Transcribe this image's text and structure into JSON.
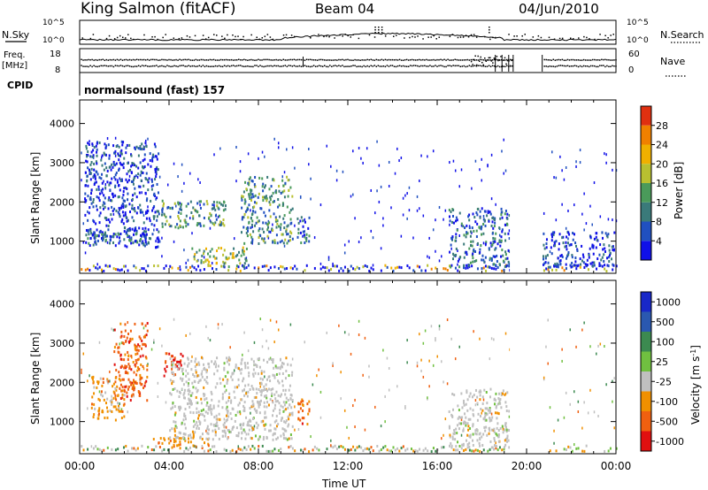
{
  "header": {
    "radar": "King Salmon (fitACF)",
    "beam": "Beam 04",
    "date": "04/Jun/2010"
  },
  "top_panels": {
    "nsky_label": "N.Sky",
    "nsearch_label": "N.Search",
    "freq_label_1": "Freq.",
    "freq_label_2": "[MHz]",
    "nave_label": "Nave",
    "cpid_label": "CPID",
    "cpid_value": "normalsound (fast) 157",
    "noise_ticks": [
      "10^5",
      "10^0"
    ],
    "freq_ticks": [
      "18",
      "8"
    ],
    "nave_ticks": [
      "60",
      "0"
    ]
  },
  "colors": {
    "power_scale": [
      "#1010e8",
      "#2050c0",
      "#3a7a7a",
      "#4a9a5a",
      "#b8c030",
      "#f0b000",
      "#f08000",
      "#e03010"
    ],
    "velocity_scale": [
      "#1828c8",
      "#2a58b0",
      "#3c8a50",
      "#70c040",
      "#c0c0c0",
      "#f09000",
      "#f06010",
      "#e01010"
    ],
    "ground_scatter": "#c0c0c0"
  },
  "chart_data": [
    {
      "type": "heatmap",
      "panel": "power",
      "ylabel": "Slant Range [km]",
      "y_ticks": [
        1000,
        2000,
        3000,
        4000
      ],
      "ylim": [
        180,
        4600
      ],
      "xlim": [
        0,
        24
      ],
      "colorbar": {
        "label": "Power [dB]",
        "tick_labels": [
          "4",
          "8",
          "12",
          "16",
          "20",
          "24",
          "28"
        ],
        "range": [
          0,
          32
        ]
      },
      "data_gaps_ut_hours": [
        [
          19.25,
          20.7
        ]
      ],
      "scatter_regions": [
        {
          "ut": [
            0.2,
            3.5
          ],
          "range_km": [
            800,
            3500
          ],
          "level_db": 6
        },
        {
          "ut": [
            0.2,
            3.0
          ],
          "range_km": [
            900,
            1300
          ],
          "level_db": 10
        },
        {
          "ut": [
            3.5,
            6.5
          ],
          "range_km": [
            1300,
            2000
          ],
          "level_db": 14
        },
        {
          "ut": [
            5.0,
            7.5
          ],
          "range_km": [
            300,
            800
          ],
          "level_db": 18
        },
        {
          "ut": [
            7.2,
            9.5
          ],
          "range_km": [
            900,
            2600
          ],
          "level_db": 12
        },
        {
          "ut": [
            9.7,
            10.3
          ],
          "range_km": [
            900,
            1600
          ],
          "level_db": 10
        },
        {
          "ut": [
            16.5,
            19.2
          ],
          "range_km": [
            300,
            1800
          ],
          "level_db": 8
        },
        {
          "ut": [
            20.7,
            23.9
          ],
          "range_km": [
            300,
            1200
          ],
          "level_db": 6
        }
      ]
    },
    {
      "type": "heatmap",
      "panel": "velocity",
      "ylabel": "Slant Range [km]",
      "xlabel": "Time UT",
      "x_tick_labels": [
        "00:00",
        "04:00",
        "08:00",
        "12:00",
        "16:00",
        "20:00",
        "00:00"
      ],
      "y_ticks": [
        1000,
        2000,
        3000,
        4000
      ],
      "ylim": [
        180,
        4600
      ],
      "xlim": [
        0,
        24
      ],
      "colorbar": {
        "label": "Velocity [m s^-1]",
        "tick_labels": [
          "1000",
          "500",
          "100",
          "25",
          "-25",
          "-100",
          "-500",
          "-1000"
        ]
      },
      "data_gaps_ut_hours": [
        [
          19.25,
          20.7
        ]
      ],
      "scatter_regions": [
        {
          "ut": [
            1.5,
            3.0
          ],
          "range_km": [
            1500,
            3500
          ],
          "velocity": -600
        },
        {
          "ut": [
            0.5,
            2.0
          ],
          "range_km": [
            1000,
            2100
          ],
          "velocity": -300
        },
        {
          "ut": [
            3.7,
            4.6
          ],
          "range_km": [
            2100,
            2700
          ],
          "velocity": -1000
        },
        {
          "ut": [
            3.0,
            5.8
          ],
          "range_km": [
            350,
            550
          ],
          "velocity": -300
        },
        {
          "ut": [
            4.0,
            9.5
          ],
          "range_km": [
            500,
            2600
          ],
          "velocity": 0,
          "ground_scatter": true
        },
        {
          "ut": [
            9.7,
            10.3
          ],
          "range_km": [
            900,
            1600
          ],
          "velocity": -500
        },
        {
          "ut": [
            16.5,
            19.2
          ],
          "range_km": [
            300,
            1800
          ],
          "velocity": 0,
          "ground_scatter": true
        }
      ]
    }
  ]
}
